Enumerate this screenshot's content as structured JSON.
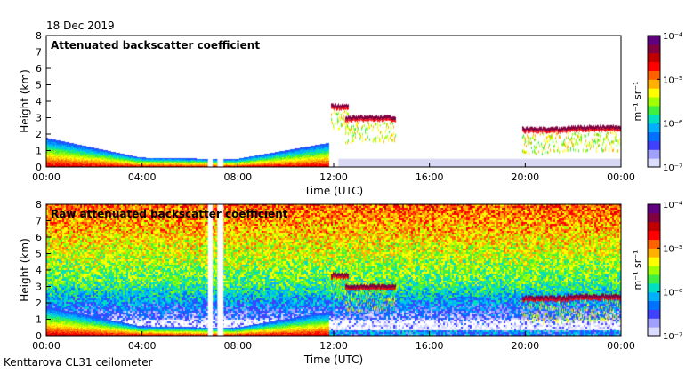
{
  "date_label": "18 Dec 2019",
  "footer_label": "Kenttarova CL31 ceilometer",
  "colorbar": {
    "unit_label": "m⁻¹ sr⁻¹",
    "ticks": [
      "10⁻⁴",
      "10⁻⁵",
      "10⁻⁶",
      "10⁻⁷"
    ],
    "log_range": [
      -7,
      -4
    ],
    "colors": [
      "#dcdcff",
      "#a0a0ff",
      "#4040ff",
      "#0070ff",
      "#00b0ff",
      "#00e0c0",
      "#40f040",
      "#a0ff00",
      "#ffff00",
      "#ffb000",
      "#ff6000",
      "#ff0000",
      "#c00000",
      "#800040",
      "#600080"
    ]
  },
  "chart_data": [
    {
      "type": "heatmap",
      "title": "Attenuated backscatter coefficient",
      "xlabel": "Time (UTC)",
      "ylabel": "Height (km)",
      "xlim": [
        0,
        24
      ],
      "ylim": [
        0,
        8
      ],
      "x_ticks": [
        "00:00",
        "04:00",
        "08:00",
        "12:00",
        "16:00",
        "20:00",
        "00:00"
      ],
      "y_ticks": [
        "0",
        "1",
        "2",
        "3",
        "4",
        "5",
        "6",
        "7",
        "8"
      ],
      "data_gaps_hours": [
        [
          6.75,
          6.95
        ],
        [
          7.15,
          7.4
        ]
      ],
      "features": [
        {
          "name": "boundary-layer",
          "time": [
            0,
            11.8
          ],
          "top_km": [
            1.8,
            0.6,
            0.5,
            1.5
          ]
        },
        {
          "name": "cloud-layer-1",
          "time": [
            11.9,
            12.6
          ],
          "height_km": 3.7
        },
        {
          "name": "cloud-layer-2",
          "time": [
            12.5,
            14.6
          ],
          "height_km": 3.0
        },
        {
          "name": "cloud-layer-3",
          "time": [
            19.9,
            21.8
          ],
          "height_km": 2.3
        },
        {
          "name": "cloud-layer-4",
          "time": [
            21.8,
            24
          ],
          "height_km": 2.4
        }
      ]
    },
    {
      "type": "heatmap",
      "title": "Raw attenuated backscatter coefficient",
      "xlabel": "Time (UTC)",
      "ylabel": "Height (km)",
      "xlim": [
        0,
        24
      ],
      "ylim": [
        0,
        8
      ],
      "x_ticks": [
        "00:00",
        "04:00",
        "08:00",
        "12:00",
        "16:00",
        "20:00",
        "00:00"
      ],
      "y_ticks": [
        "0",
        "1",
        "2",
        "3",
        "4",
        "5",
        "6",
        "7",
        "8"
      ],
      "data_gaps_hours": [
        [
          6.75,
          6.95
        ],
        [
          7.15,
          7.4
        ]
      ],
      "features": [
        {
          "name": "noise-field",
          "height_km": [
            1,
            8
          ]
        },
        {
          "name": "boundary-layer",
          "time": [
            0,
            11.8
          ],
          "top_km": [
            1.8,
            0.6,
            0.5,
            1.5
          ]
        },
        {
          "name": "cloud-layer-1",
          "time": [
            11.9,
            12.6
          ],
          "height_km": 3.7
        },
        {
          "name": "cloud-layer-2",
          "time": [
            12.5,
            14.6
          ],
          "height_km": 3.0
        },
        {
          "name": "cloud-layer-3",
          "time": [
            19.9,
            21.8
          ],
          "height_km": 2.3
        },
        {
          "name": "cloud-layer-4",
          "time": [
            21.8,
            24
          ],
          "height_km": 2.4
        }
      ]
    }
  ]
}
